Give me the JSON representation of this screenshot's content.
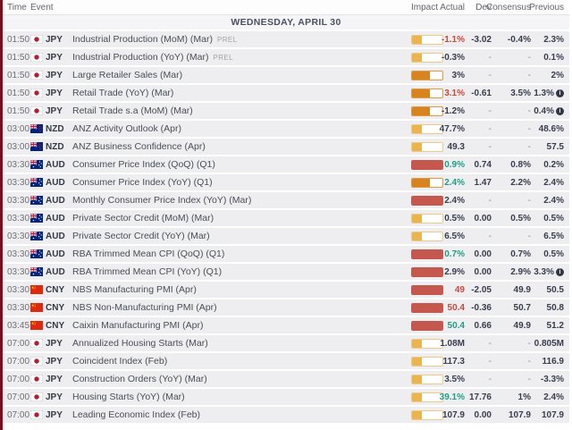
{
  "table": {
    "columns": {
      "time": "Time",
      "event": "Event",
      "impact": "Impact",
      "actual": "Actual",
      "dev": "Dev",
      "consensus": "Consensus",
      "previous": "Previous"
    },
    "date_banner": "WEDNESDAY, APRIL 30",
    "rows": [
      {
        "time": "01:50",
        "currency": "JPY",
        "event": "Industrial Production (MoM) (Mar)",
        "tag": "PREL",
        "impact": "low",
        "actual": "-1.1%",
        "actual_color": "red",
        "dev": "-3.02",
        "consensus": "-0.4%",
        "previous": "2.3%"
      },
      {
        "time": "01:50",
        "currency": "JPY",
        "event": "Industrial Production (YoY) (Mar)",
        "tag": "PREL",
        "impact": "low",
        "actual": "-0.3%",
        "actual_color": "neutral",
        "dev": "-",
        "consensus": "-",
        "previous": "0.1%"
      },
      {
        "time": "01:50",
        "currency": "JPY",
        "event": "Large Retailer Sales (Mar)",
        "impact": "medium",
        "actual": "3%",
        "actual_color": "neutral",
        "dev": "-",
        "consensus": "-",
        "previous": "2%"
      },
      {
        "time": "01:50",
        "currency": "JPY",
        "event": "Retail Trade (YoY) (Mar)",
        "impact": "medium",
        "actual": "3.1%",
        "actual_color": "red",
        "dev": "-0.61",
        "consensus": "3.5%",
        "previous": "1.3%",
        "info": true
      },
      {
        "time": "01:50",
        "currency": "JPY",
        "event": "Retail Trade s.a (MoM) (Mar)",
        "impact": "medium",
        "actual": "-1.2%",
        "actual_color": "neutral",
        "dev": "-",
        "consensus": "-",
        "previous": "0.4%",
        "info": true
      },
      {
        "time": "03:00",
        "currency": "NZD",
        "event": "ANZ Activity Outlook (Apr)",
        "impact": "low",
        "actual": "47.7%",
        "actual_color": "neutral",
        "dev": "-",
        "consensus": "-",
        "previous": "48.6%"
      },
      {
        "time": "03:00",
        "currency": "NZD",
        "event": "ANZ Business Confidence (Apr)",
        "impact": "low",
        "actual": "49.3",
        "actual_color": "neutral",
        "dev": "-",
        "consensus": "-",
        "previous": "57.5"
      },
      {
        "time": "03:30",
        "currency": "AUD",
        "event": "Consumer Price Index (QoQ) (Q1)",
        "impact": "high",
        "actual": "0.9%",
        "actual_color": "green",
        "dev": "0.74",
        "consensus": "0.8%",
        "previous": "0.2%"
      },
      {
        "time": "03:30",
        "currency": "AUD",
        "event": "Consumer Price Index (YoY) (Q1)",
        "impact": "medium",
        "actual": "2.4%",
        "actual_color": "green",
        "dev": "1.47",
        "consensus": "2.2%",
        "previous": "2.4%"
      },
      {
        "time": "03:30",
        "currency": "AUD",
        "event": "Monthly Consumer Price Index (YoY) (Mar)",
        "impact": "high",
        "actual": "2.4%",
        "actual_color": "neutral",
        "dev": "-",
        "consensus": "-",
        "previous": "2.4%"
      },
      {
        "time": "03:30",
        "currency": "AUD",
        "event": "Private Sector Credit (MoM) (Mar)",
        "impact": "low",
        "actual": "0.5%",
        "actual_color": "neutral",
        "dev": "0.00",
        "consensus": "0.5%",
        "previous": "0.5%"
      },
      {
        "time": "03:30",
        "currency": "AUD",
        "event": "Private Sector Credit (YoY) (Mar)",
        "impact": "low",
        "actual": "6.5%",
        "actual_color": "neutral",
        "dev": "-",
        "consensus": "-",
        "previous": "6.5%"
      },
      {
        "time": "03:30",
        "currency": "AUD",
        "event": "RBA Trimmed Mean CPI (QoQ) (Q1)",
        "impact": "high",
        "actual": "0.7%",
        "actual_color": "green",
        "dev": "0.00",
        "consensus": "0.7%",
        "previous": "0.5%"
      },
      {
        "time": "03:30",
        "currency": "AUD",
        "event": "RBA Trimmed Mean CPI (YoY) (Q1)",
        "impact": "high",
        "actual": "2.9%",
        "actual_color": "neutral",
        "dev": "0.00",
        "consensus": "2.9%",
        "previous": "3.3%",
        "info": true
      },
      {
        "time": "03:30",
        "currency": "CNY",
        "event": "NBS Manufacturing PMI (Apr)",
        "impact": "high",
        "actual": "49",
        "actual_color": "red",
        "dev": "-2.05",
        "consensus": "49.9",
        "previous": "50.5"
      },
      {
        "time": "03:30",
        "currency": "CNY",
        "event": "NBS Non-Manufacturing PMI (Apr)",
        "impact": "high",
        "actual": "50.4",
        "actual_color": "red",
        "dev": "-0.36",
        "consensus": "50.7",
        "previous": "50.8"
      },
      {
        "time": "03:45",
        "currency": "CNY",
        "event": "Caixin Manufacturing PMI (Apr)",
        "impact": "high",
        "actual": "50.4",
        "actual_color": "green",
        "dev": "0.66",
        "consensus": "49.9",
        "previous": "51.2"
      },
      {
        "time": "07:00",
        "currency": "JPY",
        "event": "Annualized Housing Starts (Mar)",
        "impact": "low",
        "actual": "1.08M",
        "actual_color": "neutral",
        "dev": "-",
        "consensus": "-",
        "previous": "0.805M"
      },
      {
        "time": "07:00",
        "currency": "JPY",
        "event": "Coincident Index (Feb)",
        "impact": "low",
        "actual": "117.3",
        "actual_color": "neutral",
        "dev": "-",
        "consensus": "-",
        "previous": "116.9"
      },
      {
        "time": "07:00",
        "currency": "JPY",
        "event": "Construction Orders (YoY) (Mar)",
        "impact": "low",
        "actual": "3.5%",
        "actual_color": "neutral",
        "dev": "-",
        "consensus": "-",
        "previous": "-3.3%"
      },
      {
        "time": "07:00",
        "currency": "JPY",
        "event": "Housing Starts (YoY) (Mar)",
        "impact": "low",
        "actual": "39.1%",
        "actual_color": "green",
        "dev": "17.76",
        "consensus": "1%",
        "previous": "2.4%"
      },
      {
        "time": "07:00",
        "currency": "JPY",
        "event": "Leading Economic Index (Feb)",
        "impact": "low",
        "actual": "107.9",
        "actual_color": "neutral",
        "dev": "0.00",
        "consensus": "107.9",
        "previous": "107.9"
      }
    ]
  },
  "colors": {
    "impact_low_fill": "#eab44f",
    "impact_low_border": "#ecca8a",
    "impact_medium_fill": "#d9831f",
    "impact_medium_border": "#dd9b47",
    "impact_high": "#c4584e",
    "val_red": "#c7493b",
    "val_green": "#1f9d87",
    "val_neutral": "#383d4e",
    "edge_strip": "#7c0d1c",
    "row_bg": "#eeeef1",
    "banner_bg": "#f5f5f7"
  }
}
